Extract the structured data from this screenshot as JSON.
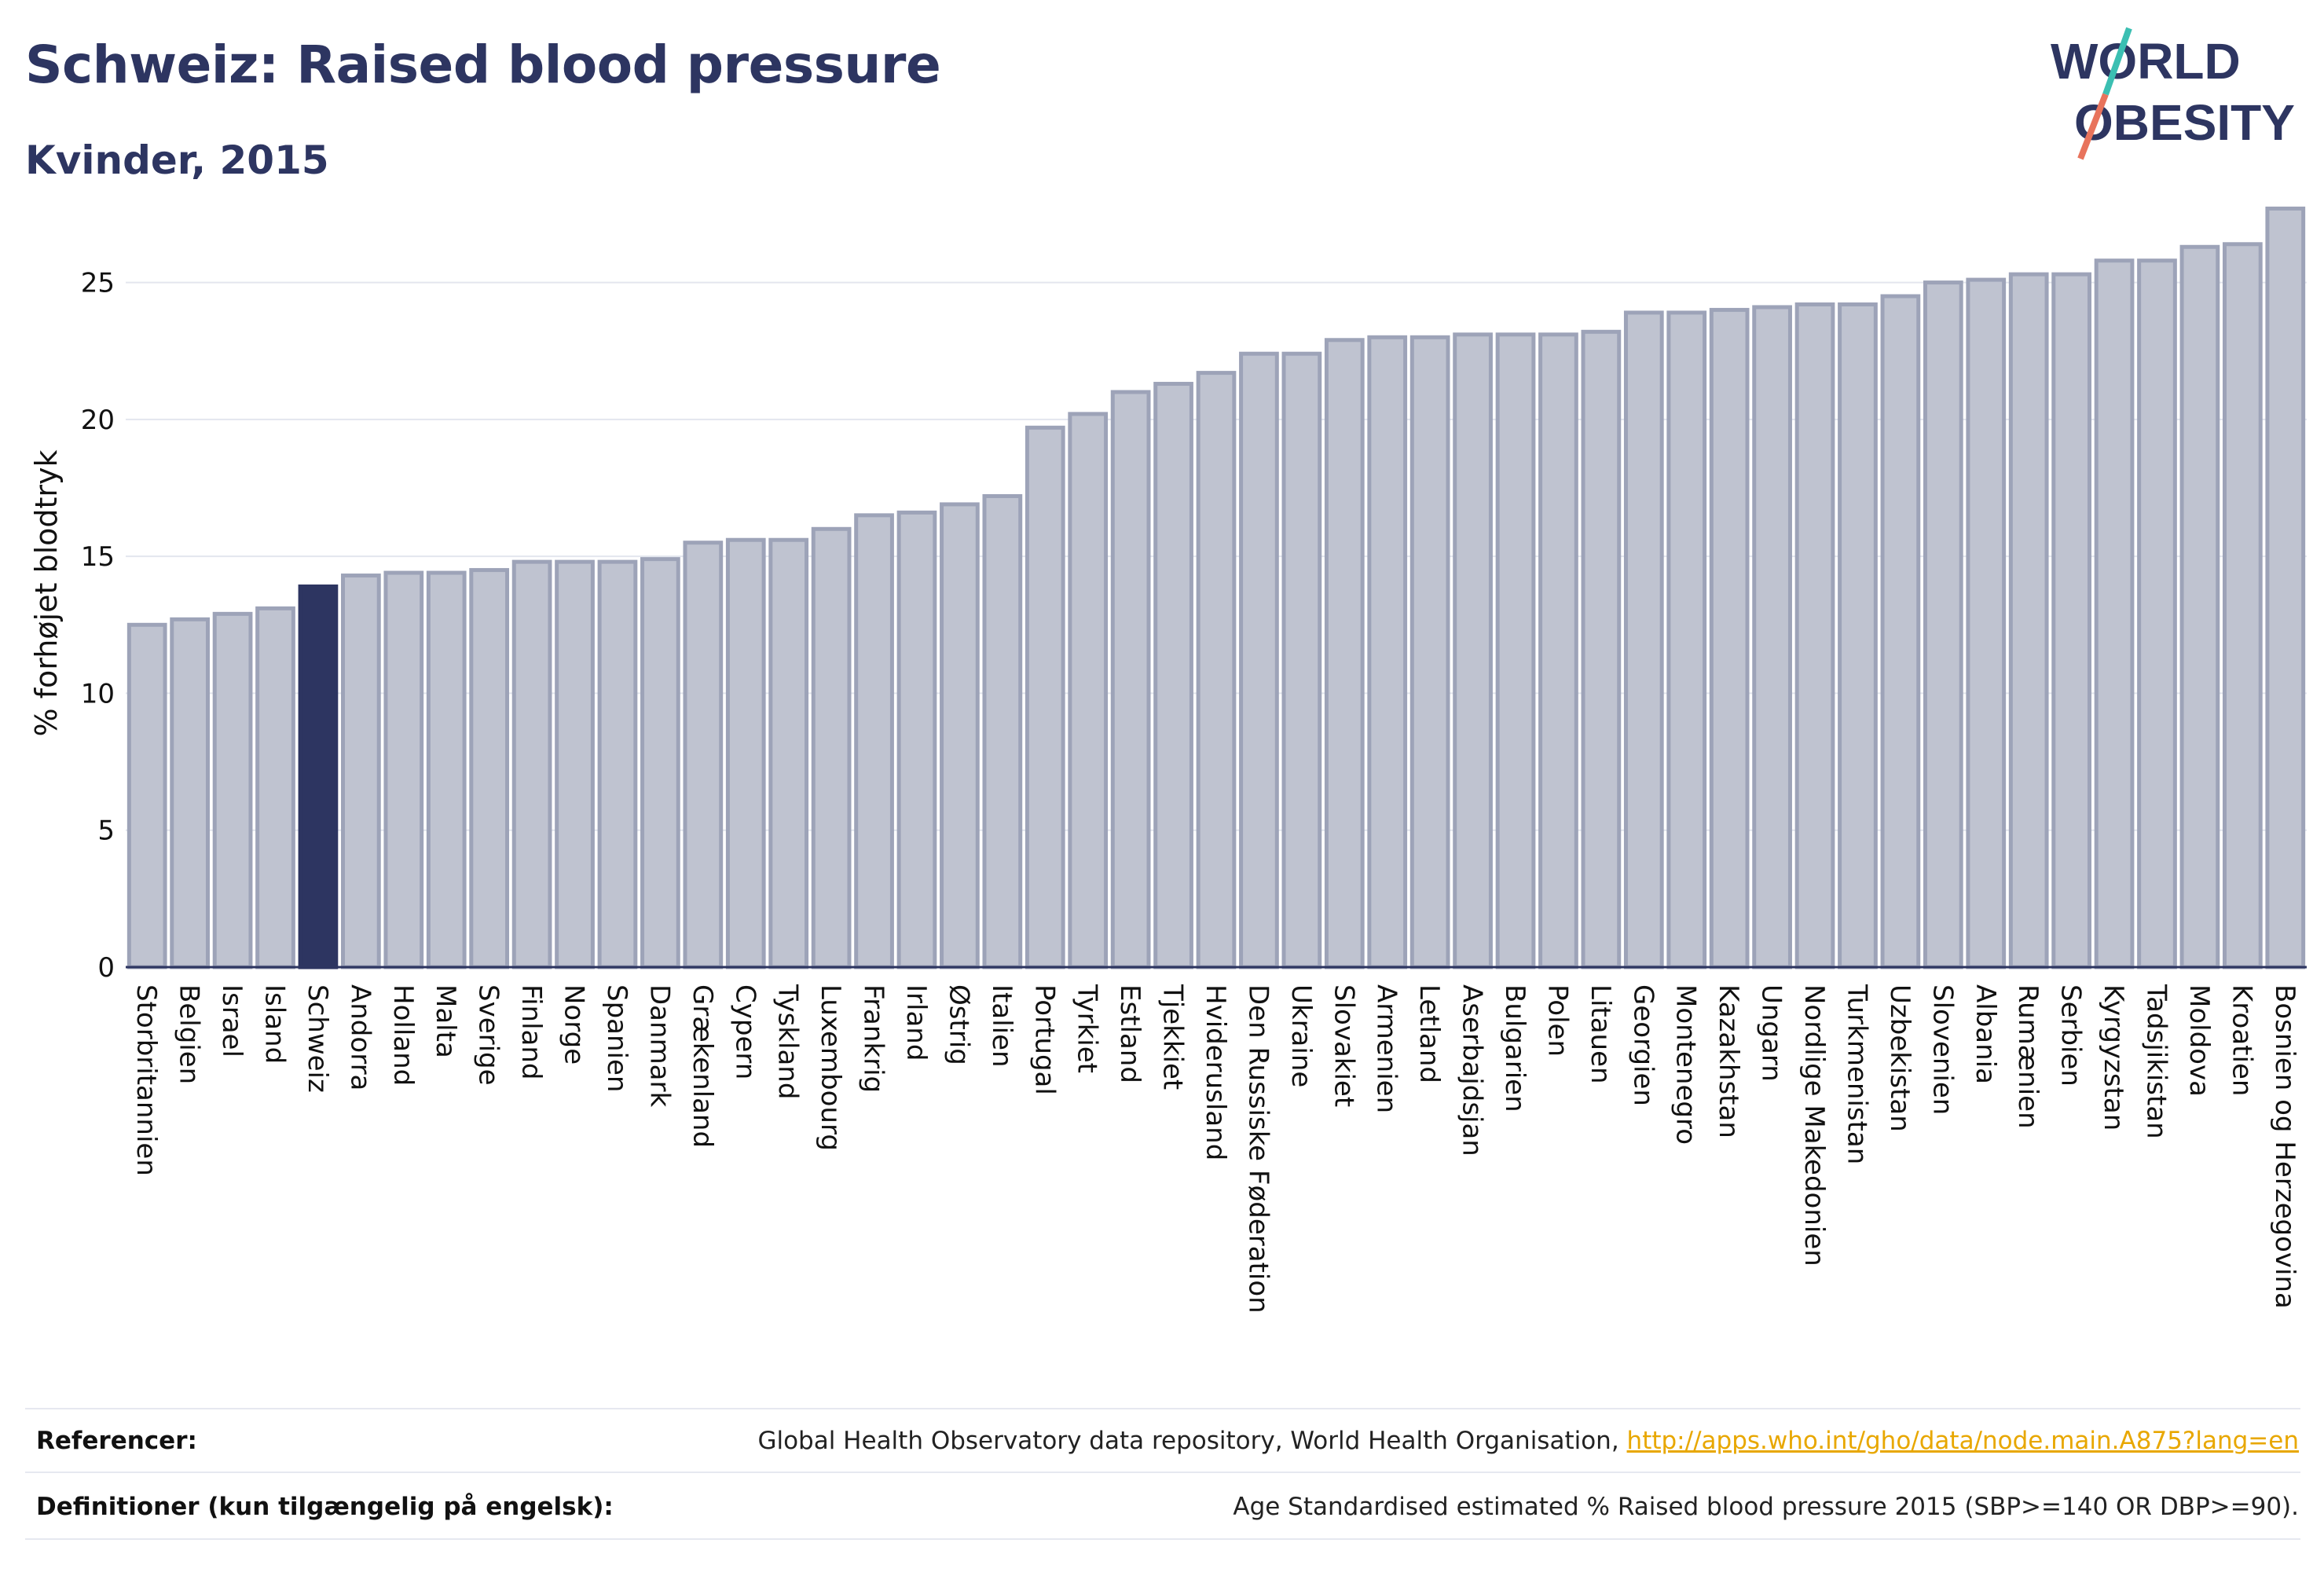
{
  "title": "Schweiz: Raised blood pressure",
  "subtitle": "Kvinder, 2015",
  "logo": {
    "line1": "WORLD",
    "line2": "OBESITY"
  },
  "colors": {
    "highlight": "#2d3561",
    "bar": "#bfc3d0",
    "bar_stroke": "#9da3b8",
    "title": "#2d3561",
    "link": "#e8a700"
  },
  "chart_data": {
    "type": "bar",
    "ylabel": "% forhøjet blodtryk",
    "xlabel": "",
    "ylim": [
      0,
      28
    ],
    "yticks": [
      0,
      5,
      10,
      15,
      20,
      25
    ],
    "grid": true,
    "highlight": "Schweiz",
    "categories": [
      "Storbritannien",
      "Belgien",
      "Israel",
      "Island",
      "Schweiz",
      "Andorra",
      "Holland",
      "Malta",
      "Sverige",
      "Finland",
      "Norge",
      "Spanien",
      "Danmark",
      "Grækenland",
      "Cypern",
      "Tyskland",
      "Luxembourg",
      "Frankrig",
      "Irland",
      "Østrig",
      "Italien",
      "Portugal",
      "Tyrkiet",
      "Estland",
      "Tjekkiet",
      "Hviderusland",
      "Den Russiske Føderation",
      "Ukraine",
      "Slovakiet",
      "Armenien",
      "Letland",
      "Aserbajdsjan",
      "Bulgarien",
      "Polen",
      "Litauen",
      "Georgien",
      "Montenegro",
      "Kazakhstan",
      "Ungarn",
      "Nordlige Makedonien",
      "Turkmenistan",
      "Uzbekistan",
      "Slovenien",
      "Albania",
      "Rumænien",
      "Serbien",
      "Kyrgyzstan",
      "Tadsjikistan",
      "Moldova",
      "Kroatien",
      "Bosnien og Herzegovina"
    ],
    "values": [
      12.5,
      12.7,
      12.9,
      13.1,
      13.9,
      14.3,
      14.4,
      14.4,
      14.5,
      14.8,
      14.8,
      14.8,
      14.9,
      15.5,
      15.6,
      15.6,
      16.0,
      16.5,
      16.6,
      16.9,
      17.2,
      19.7,
      20.2,
      21.0,
      21.3,
      21.7,
      22.4,
      22.4,
      22.9,
      23.0,
      23.0,
      23.1,
      23.1,
      23.1,
      23.2,
      23.9,
      23.9,
      24.0,
      24.1,
      24.2,
      24.2,
      24.5,
      25.0,
      25.1,
      25.3,
      25.3,
      25.8,
      25.8,
      26.3,
      26.4,
      27.7
    ]
  },
  "footer": {
    "references_label": "Referencer:",
    "references_text": "Global Health Observatory data repository, World Health Organisation, ",
    "references_link": "http://apps.who.int/gho/data/node.main.A875?lang=en",
    "definitions_label": "Definitioner (kun tilgængelig på engelsk):",
    "definitions_text": "Age Standardised estimated % Raised blood pressure 2015 (SBP>=140 OR DBP>=90)."
  }
}
